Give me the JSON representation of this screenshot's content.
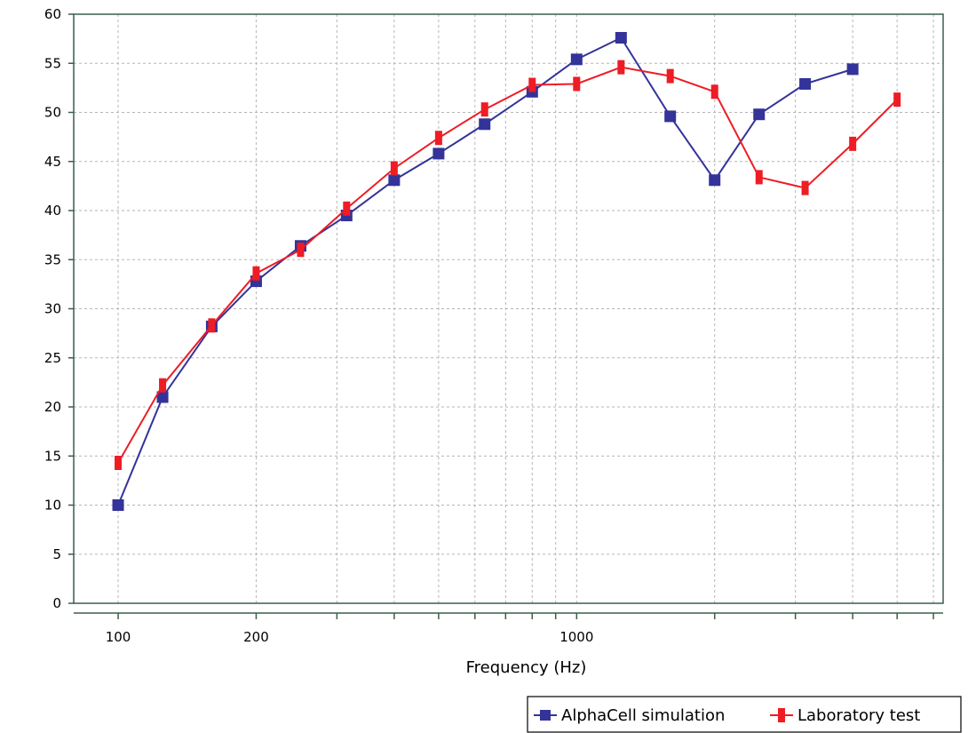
{
  "chart_data": {
    "type": "line",
    "title": "",
    "xlabel": "Frequency (Hz)",
    "ylabel": "",
    "x_scale": "log",
    "xlim": [
      80,
      6300
    ],
    "ylim": [
      0,
      60
    ],
    "y_ticks": [
      0,
      5,
      10,
      15,
      20,
      25,
      30,
      35,
      40,
      45,
      50,
      55,
      60
    ],
    "x_tick_labels": [
      {
        "value": 100,
        "label": "100"
      },
      {
        "value": 200,
        "label": "200"
      },
      {
        "value": 1000,
        "label": "1000"
      }
    ],
    "x_minor_ticks": [
      300,
      400,
      500,
      600,
      700,
      800,
      900,
      2000,
      3000,
      4000,
      5000,
      6000
    ],
    "grid": true,
    "legend_position": "bottom-right",
    "x": [
      100,
      125,
      160,
      200,
      250,
      315,
      400,
      500,
      630,
      800,
      1000,
      1250,
      1600,
      2000,
      2500,
      3150,
      4000,
      5000
    ],
    "series": [
      {
        "name": "AlphaCell simulation",
        "color": "#333399",
        "marker": "square",
        "values": [
          10,
          21,
          28.2,
          32.8,
          36.4,
          39.5,
          43.1,
          45.8,
          48.8,
          52.1,
          55.4,
          57.6,
          49.6,
          43.1,
          49.8,
          52.9,
          54.4,
          null
        ]
      },
      {
        "name": "Laboratory test",
        "color": "#ee1c25",
        "marker": "bar",
        "values": [
          14.3,
          22.2,
          28.3,
          33.6,
          36.0,
          40.2,
          44.3,
          47.4,
          50.3,
          52.8,
          52.9,
          54.6,
          53.7,
          52.1,
          43.4,
          42.3,
          46.8,
          51.3
        ]
      }
    ]
  }
}
